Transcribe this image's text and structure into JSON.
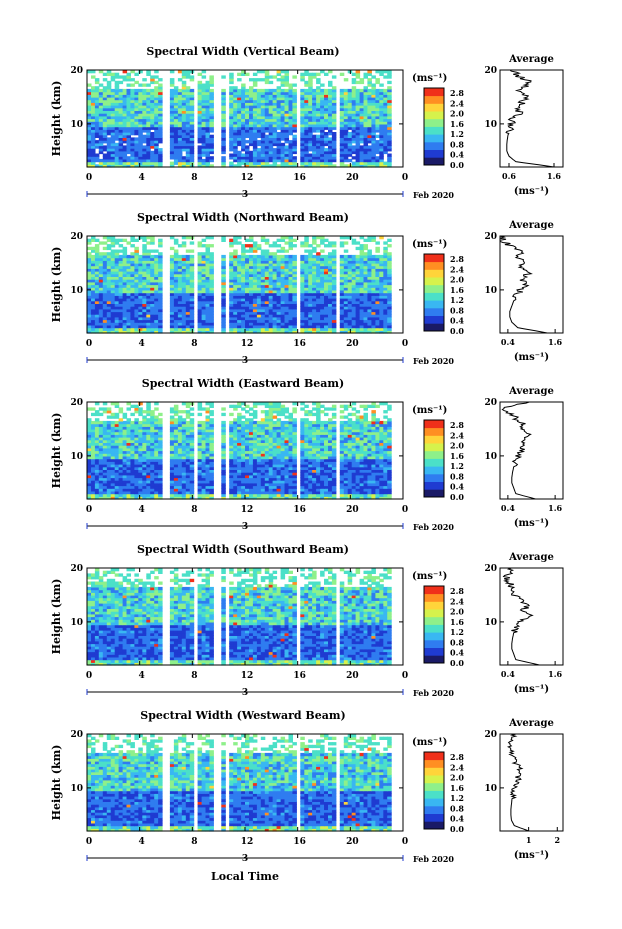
{
  "figure": {
    "xlabel": "Local Time",
    "height_label": "Height (km)",
    "cbar_unit": "(ms⁻¹)",
    "avg_title": "Average",
    "avg_xlabel": "(ms⁻¹)",
    "date_marker": "3",
    "date_suffix": "Feb 2020",
    "x_ticks": [
      "0",
      "4",
      "8",
      "12",
      "16",
      "20",
      "0"
    ],
    "y_ticks": [
      "20",
      "10"
    ],
    "cbar_ticks": [
      "2.8",
      "2.4",
      "2.0",
      "1.6",
      "1.2",
      "0.8",
      "0.4",
      "0.0"
    ],
    "colorscale": [
      "#1a1a66",
      "#1f3bd1",
      "#2f7cf0",
      "#39b7f2",
      "#4be0c8",
      "#8ef08a",
      "#d6f24c",
      "#ffd43a",
      "#ff8f22",
      "#f0301a"
    ],
    "data_gaps_hours": [
      [
        5.8,
        6.3
      ],
      [
        8.0,
        8.5
      ],
      [
        9.7,
        10.1
      ],
      [
        10.5,
        10.8
      ],
      [
        15.8,
        16.3
      ],
      [
        18.8,
        19.2
      ]
    ]
  },
  "chart_data": [
    {
      "type": "heatmap",
      "title": "Spectral Width (Vertical Beam)",
      "xlim": [
        0,
        24
      ],
      "ylim": [
        2,
        20
      ],
      "zlim": [
        0.0,
        3.0
      ],
      "avg_xlim": [
        0.4,
        1.8
      ],
      "avg_ticks": [
        "0.6",
        "1.6"
      ],
      "avg_profile": {
        "height_km": [
          2,
          3,
          4,
          5,
          6,
          7,
          8,
          9,
          10,
          11,
          12,
          13,
          14,
          15,
          16,
          17,
          18,
          19,
          20
        ],
        "width_ms": [
          1.6,
          0.75,
          0.6,
          0.55,
          0.55,
          0.56,
          0.58,
          0.62,
          0.65,
          0.7,
          0.8,
          0.85,
          0.9,
          1.0,
          0.85,
          0.95,
          1.05,
          0.8,
          0.6
        ]
      }
    },
    {
      "type": "heatmap",
      "title": "Spectral Width (Northward Beam)",
      "xlim": [
        0,
        24
      ],
      "ylim": [
        2,
        20
      ],
      "zlim": [
        0.0,
        3.0
      ],
      "avg_xlim": [
        0.2,
        1.8
      ],
      "avg_ticks": [
        "0.4",
        "1.6"
      ],
      "avg_profile": {
        "height_km": [
          2,
          3,
          4,
          5,
          6,
          7,
          8,
          9,
          10,
          11,
          12,
          13,
          14,
          15,
          16,
          17,
          18,
          19,
          20
        ],
        "width_ms": [
          1.4,
          0.65,
          0.5,
          0.45,
          0.45,
          0.5,
          0.55,
          0.65,
          0.7,
          0.85,
          0.75,
          0.9,
          0.7,
          0.85,
          0.6,
          0.8,
          0.5,
          0.3,
          0.25
        ]
      }
    },
    {
      "type": "heatmap",
      "title": "Spectral Width (Eastward Beam)",
      "xlim": [
        0,
        24
      ],
      "ylim": [
        2,
        20
      ],
      "zlim": [
        0.0,
        3.0
      ],
      "avg_xlim": [
        0.2,
        1.8
      ],
      "avg_ticks": [
        "0.4",
        "1.6"
      ],
      "avg_profile": {
        "height_km": [
          2,
          3,
          4,
          5,
          6,
          7,
          8,
          9,
          10,
          11,
          12,
          13,
          14,
          15,
          16,
          17,
          18,
          19,
          20
        ],
        "width_ms": [
          1.1,
          0.6,
          0.55,
          0.5,
          0.5,
          0.52,
          0.55,
          0.6,
          0.65,
          0.75,
          0.8,
          0.85,
          0.9,
          0.8,
          0.85,
          0.6,
          0.45,
          0.3,
          0.9
        ]
      }
    },
    {
      "type": "heatmap",
      "title": "Spectral Width (Southward Beam)",
      "xlim": [
        0,
        24
      ],
      "ylim": [
        2,
        20
      ],
      "zlim": [
        0.0,
        3.0
      ],
      "avg_xlim": [
        0.2,
        1.8
      ],
      "avg_ticks": [
        "0.4",
        "1.6"
      ],
      "avg_profile": {
        "height_km": [
          2,
          3,
          4,
          5,
          6,
          7,
          8,
          9,
          10,
          11,
          12,
          13,
          14,
          15,
          16,
          17,
          18,
          19,
          20
        ],
        "width_ms": [
          1.2,
          0.6,
          0.55,
          0.5,
          0.5,
          0.52,
          0.55,
          0.6,
          0.7,
          0.95,
          0.8,
          0.85,
          0.75,
          0.6,
          0.5,
          0.45,
          0.35,
          0.4,
          0.55
        ]
      }
    },
    {
      "type": "heatmap",
      "title": "Spectral Width (Westward Beam)",
      "xlim": [
        0,
        24
      ],
      "ylim": [
        2,
        20
      ],
      "zlim": [
        0.0,
        3.0
      ],
      "avg_xlim": [
        0,
        2.2
      ],
      "avg_ticks": [
        "1",
        "2"
      ],
      "avg_profile": {
        "height_km": [
          2,
          3,
          4,
          5,
          6,
          7,
          8,
          9,
          10,
          11,
          12,
          13,
          14,
          15,
          16,
          17,
          18,
          19,
          20
        ],
        "width_ms": [
          1.0,
          0.5,
          0.4,
          0.38,
          0.38,
          0.4,
          0.42,
          0.45,
          0.55,
          0.65,
          0.6,
          0.7,
          0.65,
          0.5,
          0.45,
          0.4,
          0.35,
          0.4,
          0.5
        ]
      }
    }
  ]
}
